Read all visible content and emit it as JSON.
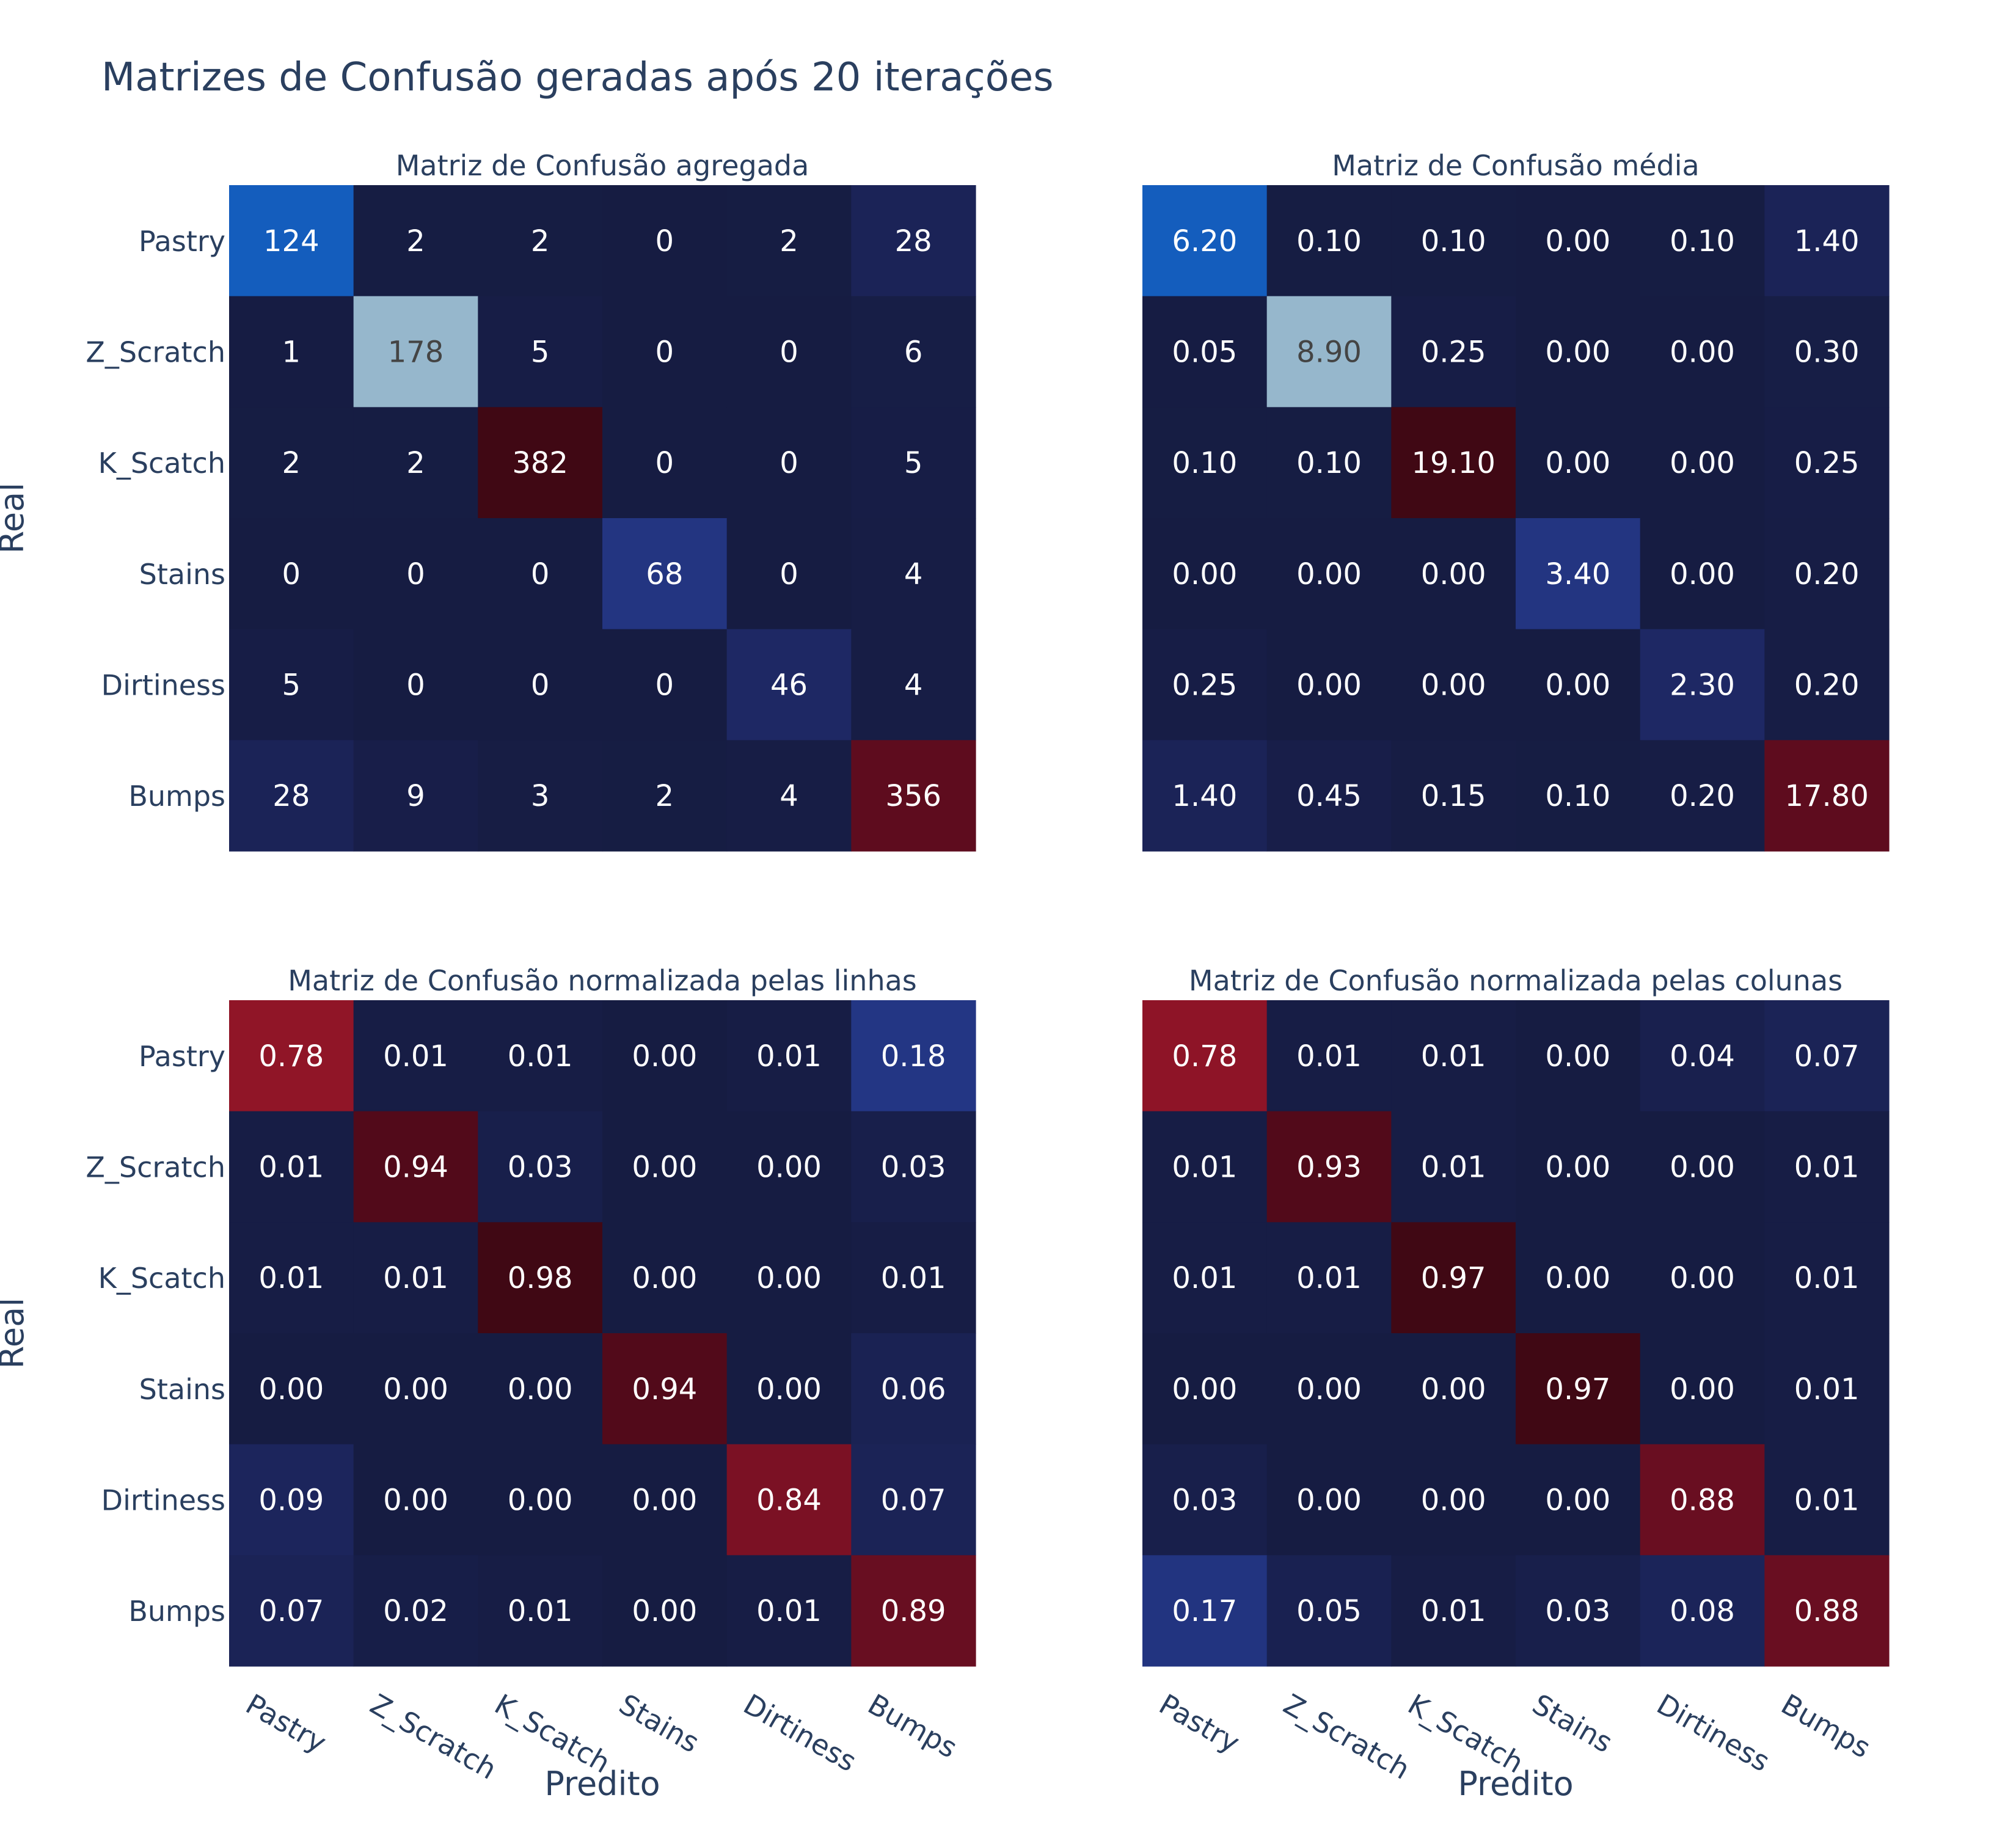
{
  "title": "Matrizes de Confusão geradas após 20 iterações",
  "chart_data": [
    {
      "type": "heatmap",
      "title": "Matriz de Confusão agregada",
      "xlabel": "",
      "ylabel": "Real",
      "x_categories": [
        "Pastry",
        "Z_Scratch",
        "K_Scatch",
        "Stains",
        "Dirtiness",
        "Bumps"
      ],
      "y_categories": [
        "Pastry",
        "Z_Scratch",
        "K_Scatch",
        "Stains",
        "Dirtiness",
        "Bumps"
      ],
      "decimals": 0,
      "values": [
        [
          124,
          2,
          2,
          0,
          2,
          28
        ],
        [
          1,
          178,
          5,
          0,
          0,
          6
        ],
        [
          2,
          2,
          382,
          0,
          0,
          5
        ],
        [
          0,
          0,
          0,
          68,
          0,
          4
        ],
        [
          5,
          0,
          0,
          0,
          46,
          4
        ],
        [
          28,
          9,
          3,
          2,
          4,
          356
        ]
      ]
    },
    {
      "type": "heatmap",
      "title": "Matriz de Confusão média",
      "xlabel": "",
      "ylabel": "",
      "x_categories": [
        "Pastry",
        "Z_Scratch",
        "K_Scatch",
        "Stains",
        "Dirtiness",
        "Bumps"
      ],
      "y_categories": [
        "Pastry",
        "Z_Scratch",
        "K_Scatch",
        "Stains",
        "Dirtiness",
        "Bumps"
      ],
      "decimals": 2,
      "values": [
        [
          6.2,
          0.1,
          0.1,
          0.0,
          0.1,
          1.4
        ],
        [
          0.05,
          8.9,
          0.25,
          0.0,
          0.0,
          0.3
        ],
        [
          0.1,
          0.1,
          19.1,
          0.0,
          0.0,
          0.25
        ],
        [
          0.0,
          0.0,
          0.0,
          3.4,
          0.0,
          0.2
        ],
        [
          0.25,
          0.0,
          0.0,
          0.0,
          2.3,
          0.2
        ],
        [
          1.4,
          0.45,
          0.15,
          0.1,
          0.2,
          17.8
        ]
      ]
    },
    {
      "type": "heatmap",
      "title": "Matriz de Confusão normalizada pelas linhas",
      "xlabel": "Predito",
      "ylabel": "Real",
      "x_categories": [
        "Pastry",
        "Z_Scratch",
        "K_Scatch",
        "Stains",
        "Dirtiness",
        "Bumps"
      ],
      "y_categories": [
        "Pastry",
        "Z_Scratch",
        "K_Scatch",
        "Stains",
        "Dirtiness",
        "Bumps"
      ],
      "decimals": 2,
      "values": [
        [
          0.78,
          0.01,
          0.01,
          0.0,
          0.01,
          0.18
        ],
        [
          0.01,
          0.94,
          0.03,
          0.0,
          0.0,
          0.03
        ],
        [
          0.01,
          0.01,
          0.98,
          0.0,
          0.0,
          0.01
        ],
        [
          0.0,
          0.0,
          0.0,
          0.94,
          0.0,
          0.06
        ],
        [
          0.09,
          0.0,
          0.0,
          0.0,
          0.84,
          0.07
        ],
        [
          0.07,
          0.02,
          0.01,
          0.0,
          0.01,
          0.89
        ]
      ]
    },
    {
      "type": "heatmap",
      "title": "Matriz de Confusão normalizada pelas colunas",
      "xlabel": "Predito",
      "ylabel": "",
      "x_categories": [
        "Pastry",
        "Z_Scratch",
        "K_Scatch",
        "Stains",
        "Dirtiness",
        "Bumps"
      ],
      "y_categories": [
        "Pastry",
        "Z_Scratch",
        "K_Scatch",
        "Stains",
        "Dirtiness",
        "Bumps"
      ],
      "decimals": 2,
      "values": [
        [
          0.78,
          0.01,
          0.01,
          0.0,
          0.04,
          0.07
        ],
        [
          0.01,
          0.93,
          0.01,
          0.0,
          0.0,
          0.01
        ],
        [
          0.01,
          0.01,
          0.97,
          0.0,
          0.0,
          0.01
        ],
        [
          0.0,
          0.0,
          0.0,
          0.97,
          0.0,
          0.01
        ],
        [
          0.03,
          0.0,
          0.0,
          0.0,
          0.88,
          0.01
        ],
        [
          0.17,
          0.05,
          0.01,
          0.03,
          0.08,
          0.88
        ]
      ]
    }
  ]
}
